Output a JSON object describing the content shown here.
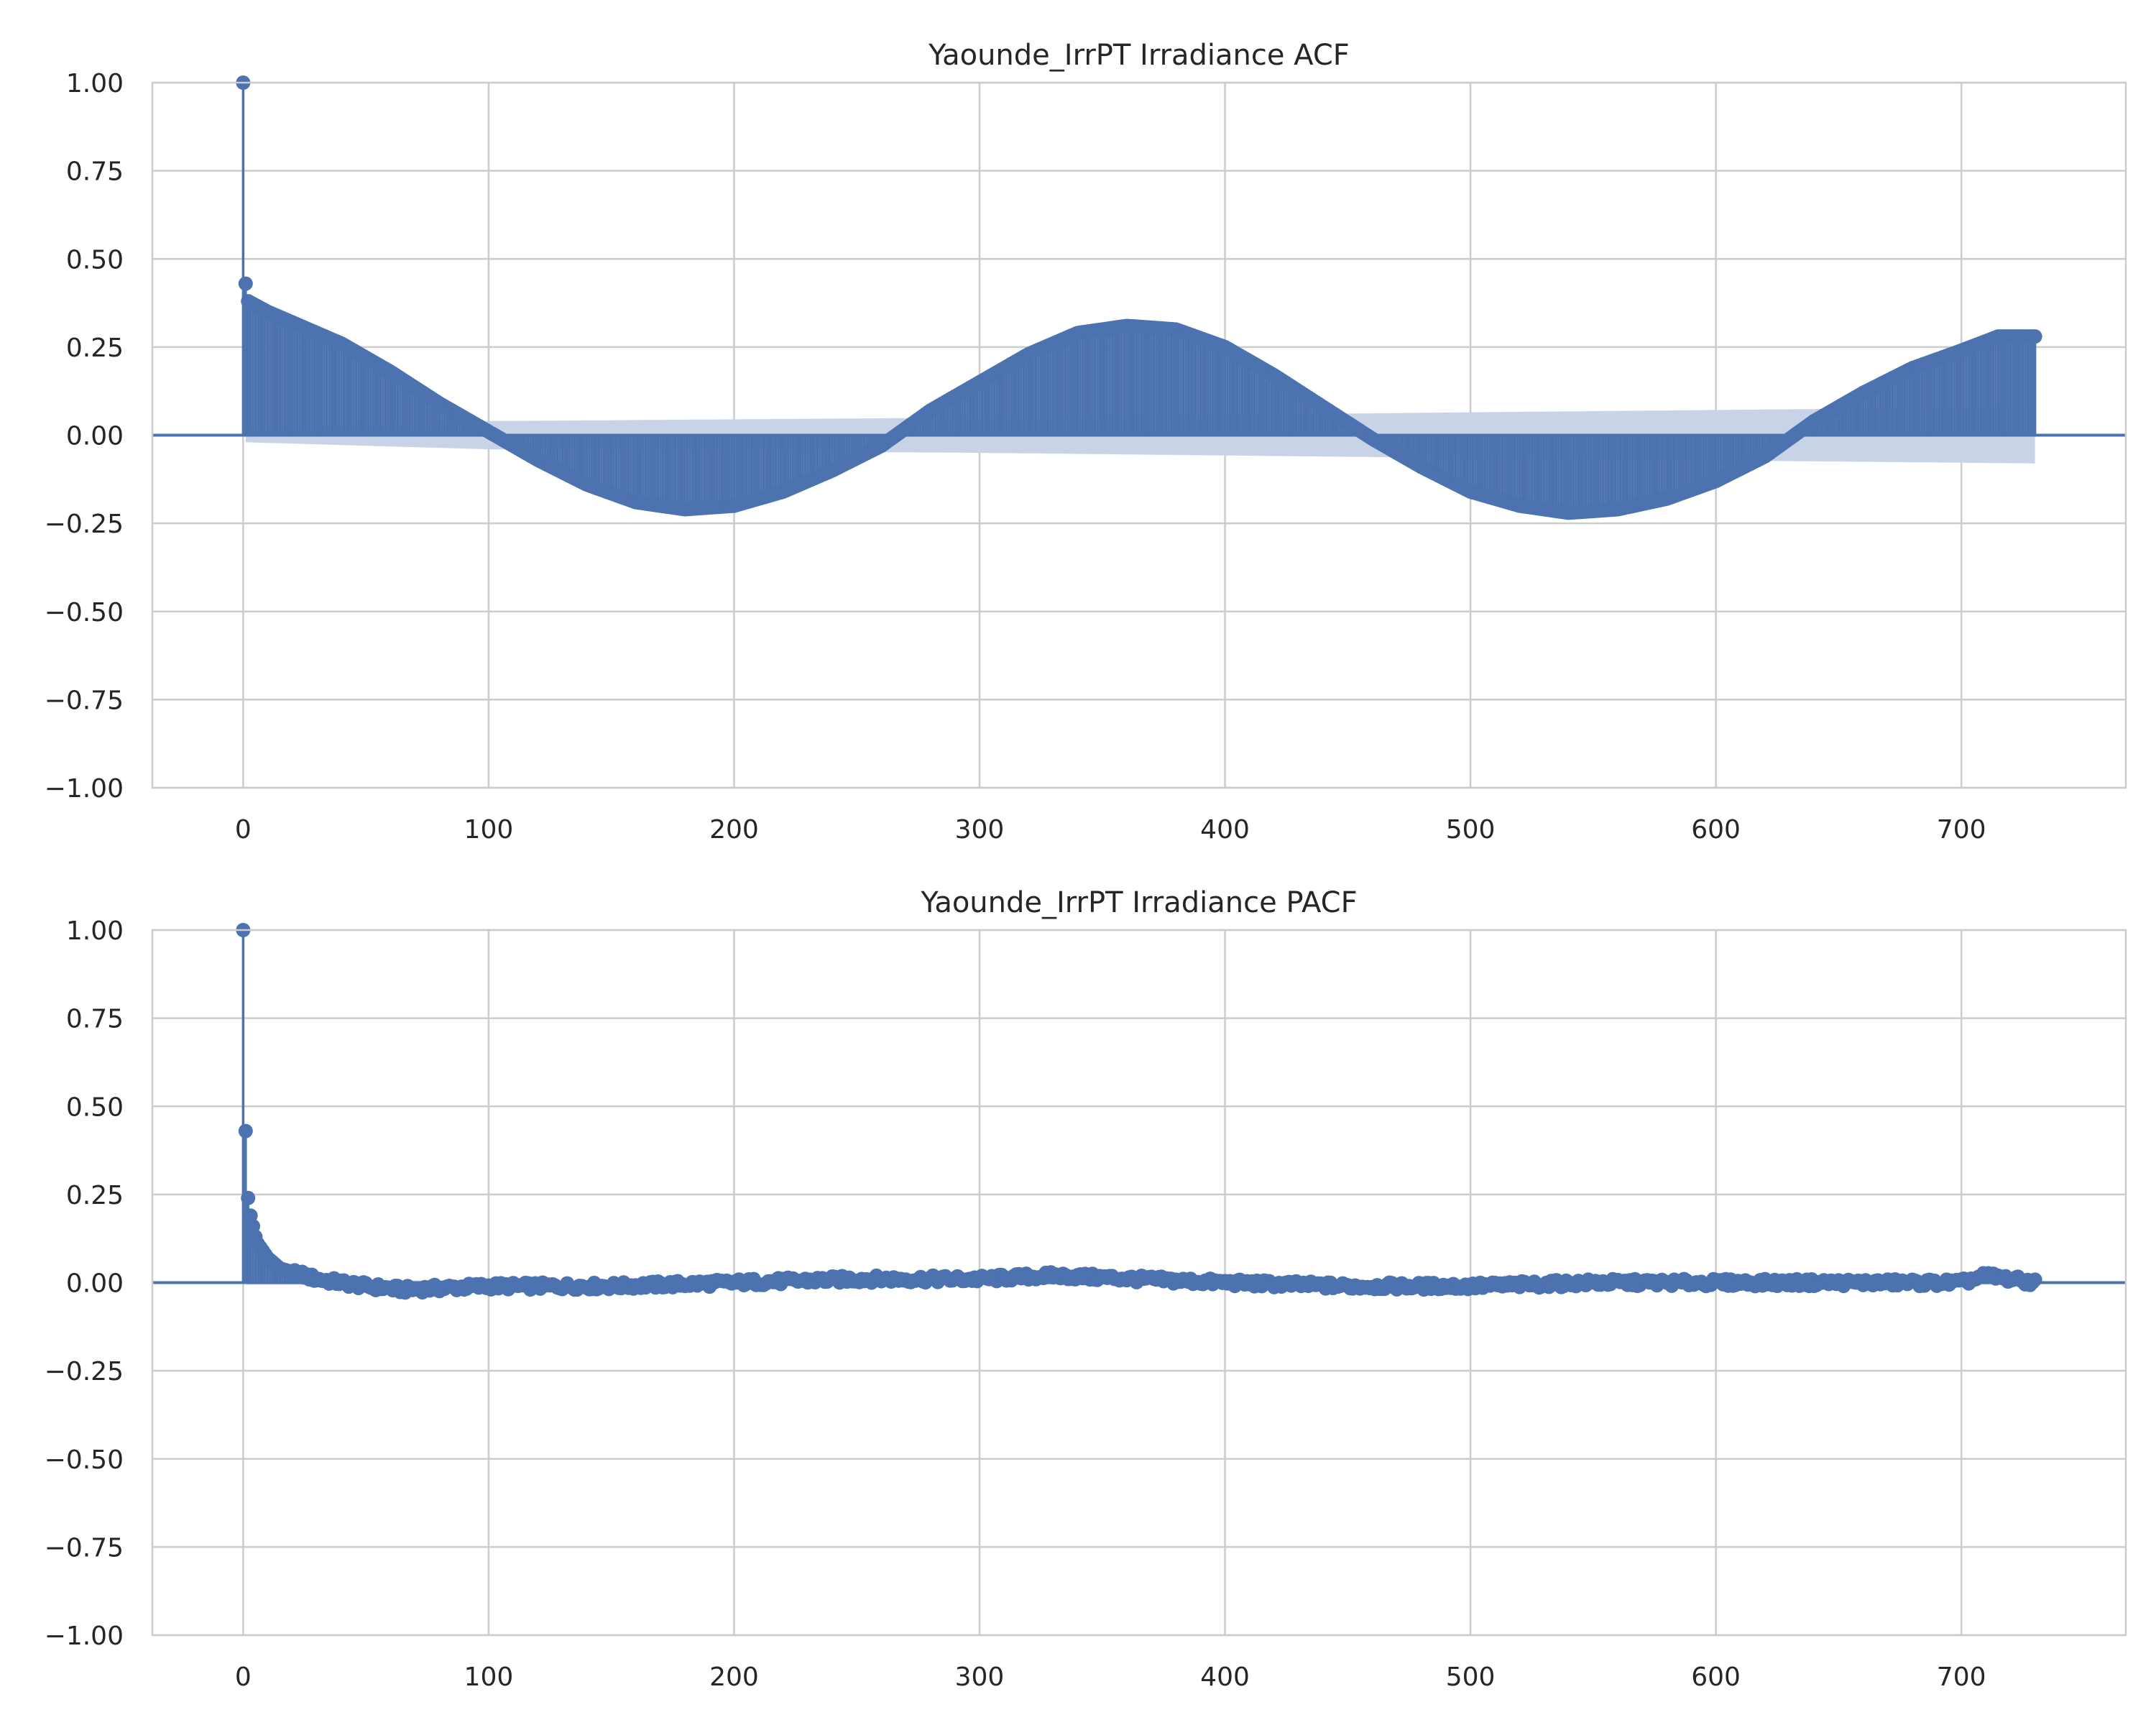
{
  "chart_data": [
    {
      "type": "bar",
      "title": "Yaounde_IrrPT Irradiance ACF",
      "xlabel": "",
      "ylabel": "",
      "xlim": [
        -37,
        767
      ],
      "ylim": [
        -1.0,
        1.0
      ],
      "x_ticks": [
        0,
        100,
        200,
        300,
        400,
        500,
        600,
        700
      ],
      "x_tick_labels": [
        "0",
        "100",
        "200",
        "300",
        "400",
        "500",
        "600",
        "700"
      ],
      "y_ticks": [
        1.0,
        0.75,
        0.5,
        0.25,
        0.0,
        -0.25,
        -0.5,
        -0.75,
        -1.0
      ],
      "y_tick_labels": [
        "1.00",
        "0.75",
        "0.50",
        "0.25",
        "0.00",
        "−0.25",
        "−0.50",
        "−0.75",
        "−1.00"
      ],
      "grid": true,
      "legend": false,
      "colors": {
        "stem": "#4c72b0",
        "confidence_band": "#c9d3e8",
        "grid": "#cccccc",
        "axes": "#cccccc"
      },
      "lag_max": 730,
      "series": [
        {
          "values_sampled": [
            {
              "lag": 0,
              "value": 1.0
            },
            {
              "lag": 1,
              "value": 0.43
            },
            {
              "lag": 2,
              "value": 0.38
            },
            {
              "lag": 10,
              "value": 0.35
            },
            {
              "lag": 20,
              "value": 0.32
            },
            {
              "lag": 40,
              "value": 0.26
            },
            {
              "lag": 60,
              "value": 0.18
            },
            {
              "lag": 80,
              "value": 0.09
            },
            {
              "lag": 100,
              "value": 0.01
            },
            {
              "lag": 120,
              "value": -0.07
            },
            {
              "lag": 140,
              "value": -0.14
            },
            {
              "lag": 160,
              "value": -0.19
            },
            {
              "lag": 180,
              "value": -0.21
            },
            {
              "lag": 200,
              "value": -0.2
            },
            {
              "lag": 220,
              "value": -0.16
            },
            {
              "lag": 240,
              "value": -0.1
            },
            {
              "lag": 260,
              "value": -0.03
            },
            {
              "lag": 280,
              "value": 0.07
            },
            {
              "lag": 300,
              "value": 0.15
            },
            {
              "lag": 320,
              "value": 0.23
            },
            {
              "lag": 340,
              "value": 0.29
            },
            {
              "lag": 360,
              "value": 0.31
            },
            {
              "lag": 380,
              "value": 0.3
            },
            {
              "lag": 400,
              "value": 0.25
            },
            {
              "lag": 420,
              "value": 0.17
            },
            {
              "lag": 440,
              "value": 0.08
            },
            {
              "lag": 460,
              "value": -0.01
            },
            {
              "lag": 480,
              "value": -0.09
            },
            {
              "lag": 500,
              "value": -0.16
            },
            {
              "lag": 520,
              "value": -0.2
            },
            {
              "lag": 540,
              "value": -0.22
            },
            {
              "lag": 560,
              "value": -0.21
            },
            {
              "lag": 580,
              "value": -0.18
            },
            {
              "lag": 600,
              "value": -0.13
            },
            {
              "lag": 620,
              "value": -0.06
            },
            {
              "lag": 640,
              "value": 0.04
            },
            {
              "lag": 660,
              "value": 0.12
            },
            {
              "lag": 680,
              "value": 0.19
            },
            {
              "lag": 700,
              "value": 0.24
            },
            {
              "lag": 715,
              "value": 0.28
            },
            {
              "lag": 730,
              "value": 0.28
            }
          ]
        }
      ],
      "confidence_band_sampled": [
        {
          "lag": 1,
          "value": 0.02
        },
        {
          "lag": 100,
          "value": 0.04
        },
        {
          "lag": 300,
          "value": 0.05
        },
        {
          "lag": 500,
          "value": 0.065
        },
        {
          "lag": 730,
          "value": 0.08
        }
      ]
    },
    {
      "type": "bar",
      "title": "Yaounde_IrrPT Irradiance PACF",
      "xlabel": "",
      "ylabel": "",
      "xlim": [
        -37,
        767
      ],
      "ylim": [
        -1.0,
        1.0
      ],
      "x_ticks": [
        0,
        100,
        200,
        300,
        400,
        500,
        600,
        700
      ],
      "x_tick_labels": [
        "0",
        "100",
        "200",
        "300",
        "400",
        "500",
        "600",
        "700"
      ],
      "y_ticks": [
        1.0,
        0.75,
        0.5,
        0.25,
        0.0,
        -0.25,
        -0.5,
        -0.75,
        -1.0
      ],
      "y_tick_labels": [
        "1.00",
        "0.75",
        "0.50",
        "0.25",
        "0.00",
        "−0.25",
        "−0.50",
        "−0.75",
        "−1.00"
      ],
      "grid": true,
      "legend": false,
      "colors": {
        "stem": "#4c72b0",
        "confidence_band": "#c9d3e8",
        "grid": "#cccccc",
        "axes": "#cccccc"
      },
      "lag_max": 730,
      "series": [
        {
          "values_sampled": [
            {
              "lag": 0,
              "value": 1.0
            },
            {
              "lag": 1,
              "value": 0.43
            },
            {
              "lag": 2,
              "value": 0.24
            },
            {
              "lag": 3,
              "value": 0.19
            },
            {
              "lag": 4,
              "value": 0.16
            },
            {
              "lag": 5,
              "value": 0.13
            },
            {
              "lag": 6,
              "value": 0.11
            },
            {
              "lag": 8,
              "value": 0.09
            },
            {
              "lag": 10,
              "value": 0.07
            },
            {
              "lag": 15,
              "value": 0.04
            },
            {
              "lag": 20,
              "value": 0.03
            },
            {
              "lag": 30,
              "value": 0.01
            },
            {
              "lag": 50,
              "value": -0.01
            },
            {
              "lag": 65,
              "value": -0.02
            },
            {
              "lag": 100,
              "value": -0.01
            },
            {
              "lag": 150,
              "value": -0.01
            },
            {
              "lag": 200,
              "value": 0.0
            },
            {
              "lag": 250,
              "value": 0.01
            },
            {
              "lag": 300,
              "value": 0.01
            },
            {
              "lag": 330,
              "value": 0.02
            },
            {
              "lag": 400,
              "value": 0.0
            },
            {
              "lag": 450,
              "value": -0.01
            },
            {
              "lag": 500,
              "value": -0.01
            },
            {
              "lag": 550,
              "value": 0.0
            },
            {
              "lag": 600,
              "value": 0.0
            },
            {
              "lag": 650,
              "value": 0.0
            },
            {
              "lag": 700,
              "value": 0.0
            },
            {
              "lag": 710,
              "value": 0.02
            },
            {
              "lag": 730,
              "value": 0.0
            }
          ]
        }
      ],
      "confidence_band_sampled": [
        {
          "lag": 1,
          "value": 0.006
        },
        {
          "lag": 730,
          "value": 0.006
        }
      ]
    }
  ]
}
